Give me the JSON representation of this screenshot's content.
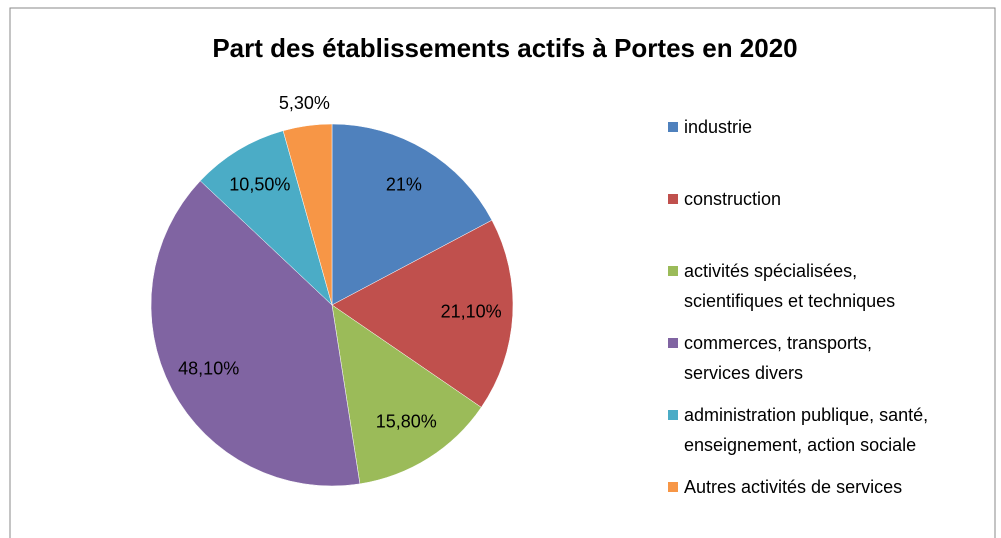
{
  "chart_data": {
    "type": "pie",
    "title": "Part des établissements actifs à Portes en 2020",
    "categories": [
      "industrie",
      "construction",
      "activités spécialisées,\nscientifiques et techniques",
      "commerces, transports,\nservices divers",
      "administration publique, santé,\nenseignement, action sociale",
      "Autres activités de services"
    ],
    "values": [
      21,
      21.1,
      15.8,
      48.1,
      10.5,
      5.3
    ],
    "value_labels": [
      "21%",
      "21,10%",
      "15,80%",
      "48,10%",
      "10,50%",
      "5,30%"
    ],
    "colors": [
      "#4f81bd",
      "#c0504d",
      "#9bbb59",
      "#8064a2",
      "#4bacc6",
      "#f79646"
    ],
    "legend": "right"
  }
}
